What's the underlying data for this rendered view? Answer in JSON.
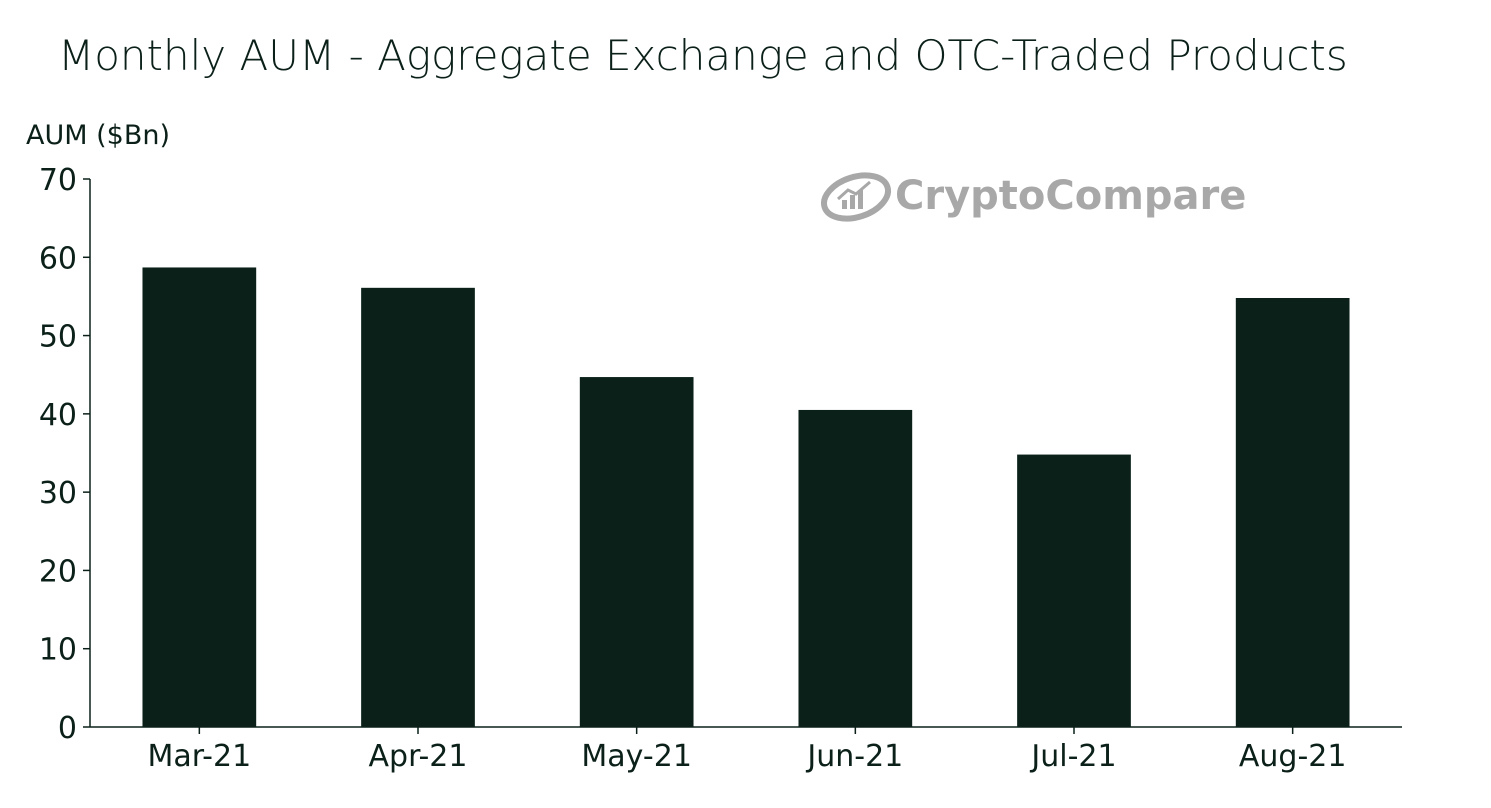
{
  "chart_data": {
    "type": "bar",
    "title": "Monthly AUM - Aggregate Exchange and OTC-Traded Products",
    "ylabel": "AUM ($Bn)",
    "xlabel": "",
    "categories": [
      "Mar-21",
      "Apr-21",
      "May-21",
      "Jun-21",
      "Jul-21",
      "Aug-21"
    ],
    "values": [
      58.7,
      56.1,
      44.7,
      40.5,
      34.8,
      54.8
    ],
    "ylim": [
      0,
      70
    ],
    "yticks": [
      0,
      10,
      20,
      30,
      40,
      50,
      60,
      70
    ],
    "grid": false,
    "bar_color": "#0a2019"
  },
  "watermark": {
    "text": "CryptoCompare",
    "icon": "cryptocompare-logo-icon",
    "color": "#a8a8a8"
  }
}
